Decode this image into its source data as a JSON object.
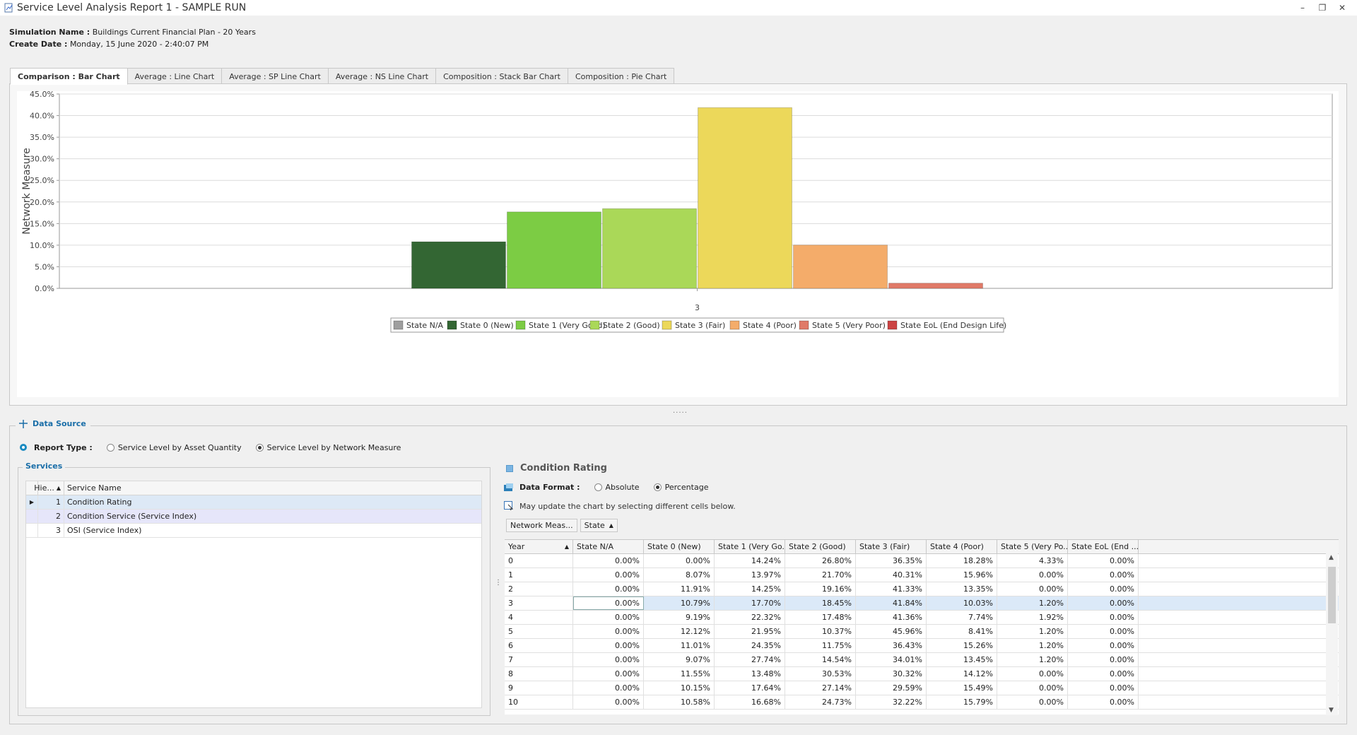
{
  "window": {
    "title": "Service Level Analysis Report 1 - SAMPLE RUN"
  },
  "info": {
    "simulation_label": "Simulation Name :",
    "simulation_value": "Buildings Current Financial Plan - 20 Years",
    "create_label": "Create Date :",
    "create_value": "Monday, 15 June 2020 - 2:40:07 PM"
  },
  "tabs": [
    {
      "label": "Comparison : Bar Chart",
      "active": true
    },
    {
      "label": "Average : Line Chart",
      "active": false
    },
    {
      "label": "Average : SP Line Chart",
      "active": false
    },
    {
      "label": "Average : NS Line Chart",
      "active": false
    },
    {
      "label": "Composition : Stack Bar Chart",
      "active": false
    },
    {
      "label": "Composition : Pie Chart",
      "active": false
    }
  ],
  "chart_data": {
    "type": "bar",
    "categories": [
      "3"
    ],
    "ylabel": "Network Measure",
    "ylim": [
      0,
      45
    ],
    "yticks": [
      "0.0%",
      "5.0%",
      "10.0%",
      "15.0%",
      "20.0%",
      "25.0%",
      "30.0%",
      "35.0%",
      "40.0%",
      "45.0%"
    ],
    "legend_position": "bottom",
    "series": [
      {
        "name": "State N/A",
        "values": [
          0.0
        ],
        "color": "#9e9e9e"
      },
      {
        "name": "State 0 (New)",
        "values": [
          10.79
        ],
        "color": "#336633"
      },
      {
        "name": "State 1 (Very Good)",
        "values": [
          17.7
        ],
        "color": "#7ccc44"
      },
      {
        "name": "State 2 (Good)",
        "values": [
          18.45
        ],
        "color": "#aad858"
      },
      {
        "name": "State 3 (Fair)",
        "values": [
          41.84
        ],
        "color": "#ecd85a"
      },
      {
        "name": "State 4 (Poor)",
        "values": [
          10.03
        ],
        "color": "#f4ac6a"
      },
      {
        "name": "State 5 (Very Poor)",
        "values": [
          1.2
        ],
        "color": "#e07a68"
      },
      {
        "name": "State EoL (End Design Life)",
        "values": [
          0.0
        ],
        "color": "#cc4444"
      }
    ]
  },
  "splitter": ".....",
  "data_source": {
    "legend": "Data Source",
    "report_type_label": "Report Type :",
    "option_asset": "Service Level by Asset Quantity",
    "option_network": "Service Level by Network Measure"
  },
  "services": {
    "legend": "Services",
    "col_hie": "Hie...",
    "col_name": "Service Name",
    "rows": [
      {
        "hie": "1",
        "name": "Condition Rating"
      },
      {
        "hie": "2",
        "name": "Condition Service (Service Index)"
      },
      {
        "hie": "3",
        "name": "OSI (Service Index)"
      }
    ]
  },
  "detail": {
    "title": "Condition Rating",
    "format_label": "Data Format :",
    "opt_absolute": "Absolute",
    "opt_percentage": "Percentage",
    "hint": "May update the chart by selecting different cells below.",
    "btn_network": "Network Meas...",
    "btn_state": "State"
  },
  "grid": {
    "year_header": "Year",
    "headers": [
      "State N/A",
      "State 0 (New)",
      "State 1 (Very Go...",
      "State 2 (Good)",
      "State 3 (Fair)",
      "State 4 (Poor)",
      "State 5 (Very Po...",
      "State EoL (End ..."
    ],
    "rows": [
      {
        "year": "0",
        "v": [
          "0.00%",
          "0.00%",
          "14.24%",
          "26.80%",
          "36.35%",
          "18.28%",
          "4.33%",
          "0.00%"
        ]
      },
      {
        "year": "1",
        "v": [
          "0.00%",
          "8.07%",
          "13.97%",
          "21.70%",
          "40.31%",
          "15.96%",
          "0.00%",
          "0.00%"
        ]
      },
      {
        "year": "2",
        "v": [
          "0.00%",
          "11.91%",
          "14.25%",
          "19.16%",
          "41.33%",
          "13.35%",
          "0.00%",
          "0.00%"
        ]
      },
      {
        "year": "3",
        "v": [
          "0.00%",
          "10.79%",
          "17.70%",
          "18.45%",
          "41.84%",
          "10.03%",
          "1.20%",
          "0.00%"
        ]
      },
      {
        "year": "4",
        "v": [
          "0.00%",
          "9.19%",
          "22.32%",
          "17.48%",
          "41.36%",
          "7.74%",
          "1.92%",
          "0.00%"
        ]
      },
      {
        "year": "5",
        "v": [
          "0.00%",
          "12.12%",
          "21.95%",
          "10.37%",
          "45.96%",
          "8.41%",
          "1.20%",
          "0.00%"
        ]
      },
      {
        "year": "6",
        "v": [
          "0.00%",
          "11.01%",
          "24.35%",
          "11.75%",
          "36.43%",
          "15.26%",
          "1.20%",
          "0.00%"
        ]
      },
      {
        "year": "7",
        "v": [
          "0.00%",
          "9.07%",
          "27.74%",
          "14.54%",
          "34.01%",
          "13.45%",
          "1.20%",
          "0.00%"
        ]
      },
      {
        "year": "8",
        "v": [
          "0.00%",
          "11.55%",
          "13.48%",
          "30.53%",
          "30.32%",
          "14.12%",
          "0.00%",
          "0.00%"
        ]
      },
      {
        "year": "9",
        "v": [
          "0.00%",
          "10.15%",
          "17.64%",
          "27.14%",
          "29.59%",
          "15.49%",
          "0.00%",
          "0.00%"
        ]
      },
      {
        "year": "10",
        "v": [
          "0.00%",
          "10.58%",
          "16.68%",
          "24.73%",
          "32.22%",
          "15.79%",
          "0.00%",
          "0.00%"
        ]
      }
    ]
  }
}
